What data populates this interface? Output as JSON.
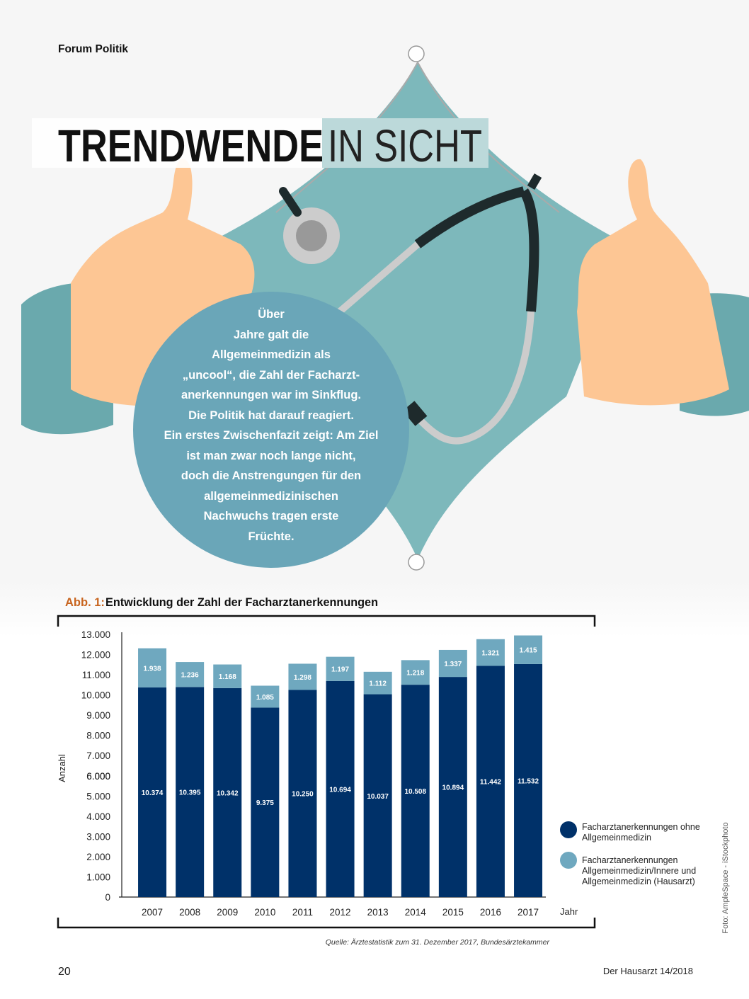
{
  "header": {
    "section": "Forum Politik",
    "title_bold": "TRENDWENDE",
    "title_light": "IN SICHT"
  },
  "intro": {
    "lines": [
      "Über",
      "Jahre galt die",
      "Allgemeinmedizin als",
      "„uncool“, die Zahl der Facharzt-",
      "anerkennungen war im Sinkflug.",
      "Die Politik hat darauf reagiert.",
      "Ein erstes Zwischenfazit zeigt: Am Ziel",
      "ist man zwar noch lange nicht,",
      "doch die Anstrengungen für den",
      "allgemeinmedizinischen",
      "Nachwuchs tragen erste",
      "Früchte."
    ]
  },
  "chart_data": {
    "type": "stacked_bar",
    "title_label": "Abb. 1:",
    "title": "Entwicklung der Zahl der Facharztanerkennungen",
    "y_label": "Anzahl",
    "x_label": "Jahr",
    "source": "Quelle: Ärztestatistik zum 31. Dezember 2017, Bundesärztekammer",
    "categories": [
      "2007",
      "2008",
      "2009",
      "2010",
      "2011",
      "2012",
      "2013",
      "2014",
      "2015",
      "2016",
      "2017"
    ],
    "series": [
      {
        "name": "Facharztanerkennungen ohne Allgemeinmedizin",
        "color": "#003169",
        "values": [
          10374,
          10395,
          10342,
          9375,
          10250,
          10694,
          10037,
          10508,
          10894,
          11442,
          11532
        ],
        "value_labels": [
          "10.374",
          "10.395",
          "10.342",
          "9.375",
          "10.250",
          "10.694",
          "10.037",
          "10.508",
          "10.894",
          "11.442",
          "11.532"
        ]
      },
      {
        "name": "Facharztanerkennungen Allgemeinmedizin/Innere und Allgemeinmedizin (Hausarzt)",
        "color": "#6fa8bf",
        "values": [
          1938,
          1236,
          1168,
          1085,
          1298,
          1197,
          1112,
          1218,
          1337,
          1321,
          1415
        ],
        "value_labels": [
          "1.938",
          "1.236",
          "1.168",
          "1.085",
          "1.298",
          "1.197",
          "1.112",
          "1.218",
          "1.337",
          "1.321",
          "1.415"
        ]
      }
    ],
    "ylim": [
      0,
      13000
    ],
    "yticks": [
      {
        "value": 13000,
        "label": "13.000"
      },
      {
        "value": 12000,
        "label": "12.000"
      },
      {
        "value": 11000,
        "label": "11.000"
      },
      {
        "value": 10000,
        "label": "10.000"
      },
      {
        "value": 9000,
        "label": "9.000"
      },
      {
        "value": 8000,
        "label": "8.000"
      },
      {
        "value": 6000,
        "label": "6.000"
      },
      {
        "value": 7000,
        "label": "7.000"
      },
      {
        "value": 6000,
        "label": "6.000"
      },
      {
        "value": 5000,
        "label": "5.000"
      },
      {
        "value": 4000,
        "label": "4.000"
      },
      {
        "value": 3000,
        "label": "3.000"
      },
      {
        "value": 2000,
        "label": "2.000"
      },
      {
        "value": 1000,
        "label": "1.000"
      },
      0
    ]
  },
  "footer": {
    "page": "20",
    "publication": "Der Hausarzt 14/2018",
    "credit": "Foto: AmpleSpace - iStockphoto"
  }
}
